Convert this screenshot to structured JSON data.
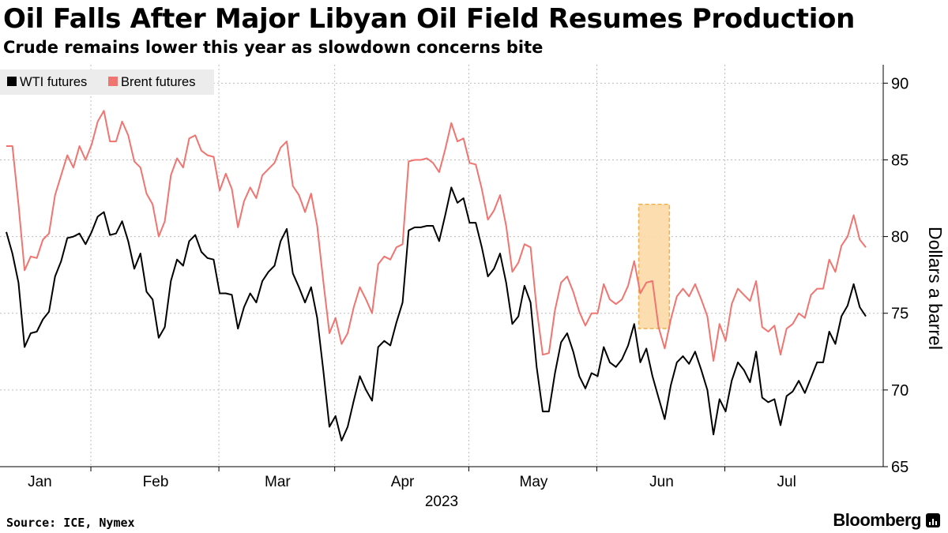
{
  "header": {
    "title": "Oil Falls After Major Libyan Oil Field Resumes Production",
    "subtitle": "Crude remains lower this year as slowdown concerns bite"
  },
  "footer": {
    "source": "Source: ICE, Nymex",
    "brand": "Bloomberg"
  },
  "colors": {
    "wti": "#000000",
    "brent": "#f07470",
    "highlight_fill": "#fcd9a6",
    "highlight_stroke": "#f0b04a",
    "grid": "#bdbdbd",
    "legend_bg": "#ececec"
  },
  "chart_data": {
    "type": "line",
    "xlabel": "2023",
    "ylabel": "Dollars a barrel",
    "ylim": [
      65,
      91.2
    ],
    "yticks": [
      65,
      70,
      75,
      80,
      85,
      90
    ],
    "x_tick_labels": [
      "Jan",
      "Feb",
      "Mar",
      "Apr",
      "May",
      "Jun",
      "Jul"
    ],
    "grid": true,
    "legend_position": "top-left",
    "y_axis_side": "right",
    "highlight": {
      "start_index": 104,
      "end_index": 108,
      "y_range": [
        74,
        82.1
      ]
    },
    "series": [
      {
        "name": "WTI futures",
        "color": "#000000",
        "values": [
          80.3,
          78.9,
          77.0,
          72.8,
          73.7,
          73.8,
          74.6,
          75.1,
          77.4,
          78.4,
          79.9,
          80.0,
          80.2,
          79.5,
          80.3,
          81.3,
          81.6,
          80.1,
          80.2,
          81.0,
          79.7,
          77.9,
          78.9,
          76.4,
          75.9,
          73.4,
          74.1,
          77.1,
          78.5,
          78.1,
          79.7,
          80.1,
          79.0,
          78.6,
          78.5,
          76.3,
          76.3,
          76.2,
          74.0,
          75.4,
          76.3,
          75.7,
          77.1,
          77.7,
          78.1,
          79.7,
          80.5,
          77.6,
          76.7,
          75.7,
          76.7,
          74.7,
          71.3,
          67.6,
          68.3,
          66.7,
          67.6,
          69.3,
          70.9,
          70.0,
          69.3,
          72.8,
          73.2,
          72.9,
          74.4,
          75.7,
          80.4,
          80.6,
          80.6,
          80.7,
          80.7,
          79.7,
          81.4,
          83.2,
          82.2,
          82.5,
          80.9,
          80.9,
          79.3,
          77.4,
          77.9,
          78.9,
          77.0,
          74.3,
          74.8,
          76.8,
          75.7,
          71.5,
          68.6,
          68.6,
          71.1,
          73.1,
          73.7,
          72.5,
          70.9,
          70.1,
          71.1,
          70.9,
          72.8,
          71.8,
          71.5,
          72.0,
          72.9,
          74.3,
          71.8,
          72.7,
          70.9,
          69.5,
          68.1,
          70.3,
          71.8,
          72.2,
          71.7,
          72.5,
          71.3,
          70.0,
          67.1,
          69.4,
          68.6,
          70.6,
          71.8,
          71.3,
          70.5,
          72.5,
          69.5,
          69.2,
          69.4,
          67.7,
          69.6,
          69.9,
          70.6,
          69.8,
          70.8,
          71.8,
          71.8,
          73.8,
          73.0,
          74.8,
          75.5,
          76.9,
          75.4,
          74.8
        ]
      },
      {
        "name": "Brent futures",
        "color": "#f07470",
        "values": [
          85.9,
          85.9,
          82.1,
          77.8,
          78.7,
          78.6,
          79.8,
          80.2,
          82.7,
          84.0,
          85.3,
          84.5,
          85.9,
          85.0,
          86.0,
          87.5,
          88.2,
          86.2,
          86.2,
          87.5,
          86.6,
          84.9,
          84.5,
          82.8,
          82.1,
          80.0,
          81.0,
          84.0,
          85.1,
          84.5,
          86.4,
          86.6,
          85.6,
          85.3,
          85.2,
          83.0,
          84.1,
          83.1,
          80.6,
          82.3,
          83.2,
          82.5,
          84.0,
          84.4,
          84.8,
          85.8,
          86.2,
          83.3,
          82.7,
          81.6,
          82.8,
          80.7,
          77.1,
          73.7,
          74.7,
          73.0,
          73.7,
          75.4,
          76.7,
          75.9,
          75.0,
          78.2,
          78.7,
          78.5,
          79.3,
          79.5,
          84.9,
          85.0,
          85.0,
          85.1,
          84.8,
          84.2,
          85.7,
          87.4,
          86.2,
          86.4,
          84.8,
          84.7,
          83.1,
          81.1,
          81.7,
          82.7,
          80.7,
          77.7,
          78.3,
          79.5,
          79.3,
          75.3,
          72.3,
          72.4,
          75.2,
          77.0,
          77.4,
          76.4,
          75.1,
          74.2,
          75.0,
          75.0,
          76.9,
          75.9,
          75.6,
          75.9,
          76.8,
          78.4,
          76.3,
          77.0,
          77.1,
          74.1,
          72.7,
          74.6,
          76.1,
          76.6,
          76.1,
          76.9,
          75.9,
          74.8,
          71.9,
          74.3,
          73.2,
          75.6,
          76.6,
          76.2,
          75.8,
          77.1,
          74.1,
          73.8,
          74.2,
          72.3,
          74.0,
          74.3,
          75.0,
          74.7,
          76.2,
          76.6,
          76.6,
          78.5,
          77.7,
          79.4,
          80.0,
          81.4,
          79.8,
          79.3
        ]
      }
    ]
  }
}
